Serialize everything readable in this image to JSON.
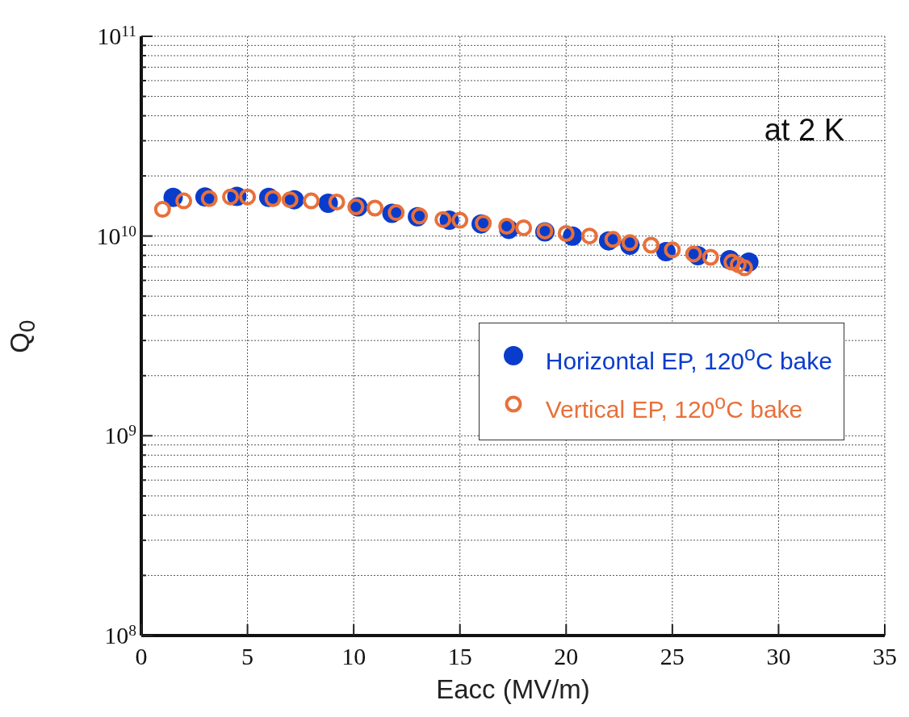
{
  "chart_data": {
    "type": "scatter",
    "xlabel": "Eacc (MV/m)",
    "ylabel": "Q$_{0}$",
    "annotations": [
      "at 2 K"
    ],
    "xlim": [
      0,
      35
    ],
    "xticks": [
      0,
      5,
      10,
      15,
      20,
      25,
      30,
      35
    ],
    "ylim": [
      100000000,
      100000000000
    ],
    "log": true,
    "grid": true,
    "legend": "right",
    "marker": "circle",
    "yticks": [
      {
        "value": 100000000,
        "label": "10$^{8}$"
      },
      {
        "value": 200000000,
        "label": null
      },
      {
        "value": 300000000,
        "label": null
      },
      {
        "value": 400000000,
        "label": null
      },
      {
        "value": 500000000,
        "label": null
      },
      {
        "value": 600000000,
        "label": null
      },
      {
        "value": 700000000,
        "label": null
      },
      {
        "value": 800000000,
        "label": null
      },
      {
        "value": 900000000,
        "label": null
      },
      {
        "value": 1000000000,
        "label": "10$^{9}$"
      },
      {
        "value": 2000000000,
        "label": null
      },
      {
        "value": 3000000000,
        "label": null
      },
      {
        "value": 4000000000,
        "label": null
      },
      {
        "value": 5000000000,
        "label": null
      },
      {
        "value": 6000000000,
        "label": null
      },
      {
        "value": 7000000000,
        "label": null
      },
      {
        "value": 8000000000,
        "label": null
      },
      {
        "value": 9000000000,
        "label": null
      },
      {
        "value": 10000000000,
        "label": "10$^{10}$"
      },
      {
        "value": 20000000000,
        "label": null
      },
      {
        "value": 30000000000,
        "label": null
      },
      {
        "value": 40000000000,
        "label": null
      },
      {
        "value": 50000000000,
        "label": null
      },
      {
        "value": 60000000000,
        "label": null
      },
      {
        "value": 70000000000,
        "label": null
      },
      {
        "value": 80000000000,
        "label": null
      },
      {
        "value": 90000000000,
        "label": null
      },
      {
        "value": 100000000000,
        "label": "10$^{11}$"
      }
    ],
    "series": [
      {
        "name": "Horizontal EP, 120$^{o}$C bake",
        "color": "#0a3ccc",
        "x": [
          1.5,
          3,
          4.5,
          6,
          7.2,
          8.8,
          10.2,
          11.8,
          13,
          14.5,
          16,
          17.3,
          19,
          20.3,
          22,
          23,
          24.7,
          26.2,
          27.7,
          28.6
        ],
        "values": [
          15600000000,
          15700000000,
          15800000000,
          15600000000,
          15200000000,
          14600000000,
          14000000000,
          13000000000,
          12500000000,
          12000000000,
          11500000000,
          10800000000,
          10500000000,
          10000000000,
          9460000000,
          9000000000,
          8360000000,
          7980000000,
          7620000000,
          7400000000
        ]
      },
      {
        "name": "Vertical EP, 120$^{o}$C bake",
        "color": "#e8703a",
        "marker": "circle-open",
        "x": [
          1,
          2,
          3.2,
          4.2,
          5,
          6.2,
          7,
          8,
          9.2,
          10.1,
          11,
          12,
          13.1,
          14.2,
          15,
          16.1,
          17.2,
          18,
          19,
          20,
          21.1,
          22.2,
          23,
          24,
          25,
          26,
          26.8,
          27.8,
          28.1,
          28.4
        ],
        "values": [
          13600000000,
          15000000000,
          15400000000,
          15700000000,
          15700000000,
          15400000000,
          15200000000,
          15000000000,
          14800000000,
          14000000000,
          13800000000,
          13100000000,
          12600000000,
          12100000000,
          12000000000,
          11600000000,
          11200000000,
          11000000000,
          10600000000,
          10300000000,
          10000000000,
          9630000000,
          9270000000,
          9000000000,
          8530000000,
          8130000000,
          7830000000,
          7400000000,
          7190000000,
          6930000000
        ]
      }
    ]
  }
}
